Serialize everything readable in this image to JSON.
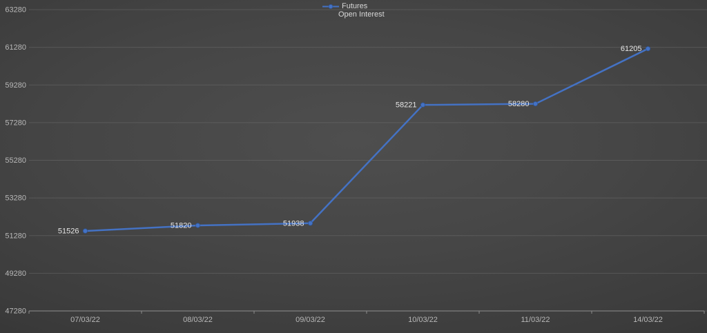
{
  "chart_data": {
    "type": "line",
    "title": "",
    "categories": [
      "07/03/22",
      "08/03/22",
      "09/03/22",
      "10/03/22",
      "11/03/22",
      "14/03/22"
    ],
    "series": [
      {
        "name": "Futures Open Interest",
        "values": [
          51526,
          51820,
          51938,
          58221,
          58280,
          61205
        ]
      }
    ],
    "data_labels": [
      "51526",
      "51820",
      "51938",
      "58221",
      "58280",
      "61205"
    ],
    "y_ticks": [
      47280,
      49280,
      51280,
      53280,
      55280,
      57280,
      59280,
      61280,
      63280
    ],
    "ylim": [
      47280,
      63280
    ],
    "xlabel": "",
    "ylabel": "",
    "grid": true,
    "legend": {
      "position": "top-center",
      "line1": "Futures",
      "line2": "Open Interest"
    },
    "colors": {
      "line": "#4472c4",
      "marker_fill": "#4472c4",
      "marker_stroke": "#2f5597",
      "label_text": "#e6e6e6",
      "axis_text": "#b8b8b8",
      "gridline": "rgba(115,115,115,0.45)",
      "axis_line": "#8f8f8f",
      "background_center": "#4e4e4e",
      "background_edge": "#323232"
    }
  }
}
